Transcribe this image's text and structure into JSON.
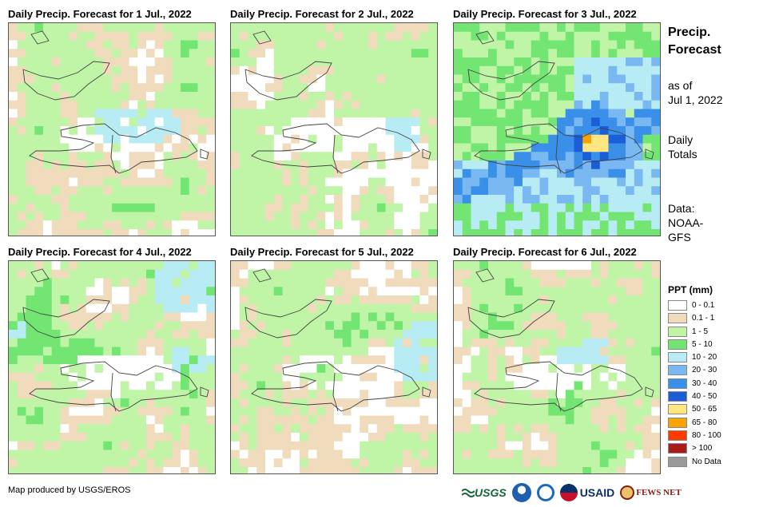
{
  "panels": [
    {
      "title": "Daily Precip. Forecast for 1 Jul., 2022"
    },
    {
      "title": "Daily Precip. Forecast for 2 Jul., 2022"
    },
    {
      "title": "Daily Precip. Forecast for 3 Jul., 2022"
    },
    {
      "title": "Daily Precip. Forecast for 4 Jul., 2022"
    },
    {
      "title": "Daily Precip. Forecast for 5 Jul., 2022"
    },
    {
      "title": "Daily Precip. Forecast for 6 Jul., 2022"
    }
  ],
  "side": {
    "title_line1": "Precip.",
    "title_line2": "Forecast",
    "asof_line1": "as of",
    "asof_line2": "Jul 1, 2022",
    "totals_line1": "Daily",
    "totals_line2": "Totals",
    "data_line1": "Data:",
    "data_line2": "NOAA-",
    "data_line3": "GFS"
  },
  "legend": {
    "title": "PPT (mm)",
    "items": [
      {
        "label": "0 - 0.1",
        "color": "#ffffff"
      },
      {
        "label": "0.1 - 1",
        "color": "#f0dcbc"
      },
      {
        "label": "1 - 5",
        "color": "#c0f5a8"
      },
      {
        "label": "5 - 10",
        "color": "#72e572"
      },
      {
        "label": "10 - 20",
        "color": "#b8ecf5"
      },
      {
        "label": "20 - 30",
        "color": "#7ab8f2"
      },
      {
        "label": "30 - 40",
        "color": "#3a8fe8"
      },
      {
        "label": "40 - 50",
        "color": "#1a5ed8"
      },
      {
        "label": "50 - 65",
        "color": "#ffe680"
      },
      {
        "label": "65 - 80",
        "color": "#f8a300"
      },
      {
        "label": "80 - 100",
        "color": "#ff3a00"
      },
      {
        "label": "> 100",
        "color": "#a81c1c"
      },
      {
        "label": "No Data",
        "color": "#9a9a9a"
      }
    ]
  },
  "credit": "Map produced by USGS/EROS",
  "logos": {
    "usgs": "USGS",
    "usaid": "USAID",
    "fews": "FEWS NET"
  }
}
